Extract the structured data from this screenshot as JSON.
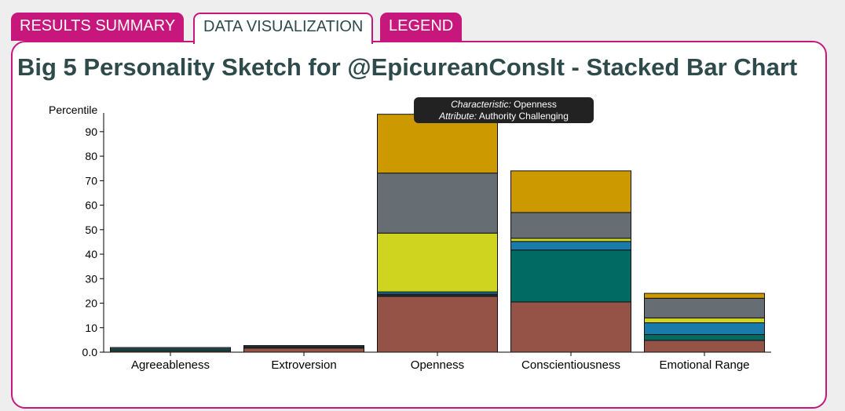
{
  "tabs": [
    {
      "label": "RESULTS SUMMARY",
      "active": false
    },
    {
      "label": "DATA VISUALIZATION",
      "active": true
    },
    {
      "label": "LEGEND",
      "active": false
    }
  ],
  "title": "Big 5 Personality Sketch for @EpicureanConslt - Stacked Bar Chart",
  "tooltip": {
    "characteristic_label": "Characteristic:",
    "characteristic_value": "Openness",
    "attribute_label": "Attribute:",
    "attribute_value": "Authority Challenging"
  },
  "colors": {
    "accent": "#c8177c",
    "title": "#2e4a4a",
    "seg1": "#955246",
    "seg2": "#1f2f2f",
    "seg3": "#1a7bab",
    "seg4": "#cfd51f",
    "seg5": "#666e74",
    "seg6": "#cc9900",
    "seg7": "#006a63"
  },
  "chart_data": {
    "type": "bar",
    "stacked": true,
    "ylabel": "Percentile",
    "ylim": [
      0,
      97
    ],
    "yticks": [
      "0.0",
      "10",
      "20",
      "30",
      "40",
      "50",
      "60",
      "70",
      "80",
      "90"
    ],
    "categories": [
      "Agreeableness",
      "Extroversion",
      "Openness",
      "Conscientiousness",
      "Emotional Range"
    ],
    "stacks": [
      [
        {
          "value": 0.5,
          "color": "#955246"
        },
        {
          "value": 0.8,
          "color": "#006a63"
        },
        {
          "value": 0.6,
          "color": "#666e74"
        }
      ],
      [
        {
          "value": 1.7,
          "color": "#955246"
        },
        {
          "value": 1.0,
          "color": "#1f2f2f"
        }
      ],
      [
        {
          "value": 22.8,
          "color": "#955246"
        },
        {
          "value": 0.9,
          "color": "#1f2f2f"
        },
        {
          "value": 0.9,
          "color": "#1a7bab"
        },
        {
          "value": 24.0,
          "color": "#cfd51f"
        },
        {
          "value": 24.5,
          "color": "#666e74"
        },
        {
          "value": 24.0,
          "color": "#cc9900"
        }
      ],
      [
        {
          "value": 20.5,
          "color": "#955246"
        },
        {
          "value": 21.2,
          "color": "#006a63"
        },
        {
          "value": 3.5,
          "color": "#1a7bab"
        },
        {
          "value": 1.3,
          "color": "#cfd51f"
        },
        {
          "value": 10.5,
          "color": "#666e74"
        },
        {
          "value": 17.0,
          "color": "#cc9900"
        }
      ],
      [
        {
          "value": 4.8,
          "color": "#955246"
        },
        {
          "value": 2.4,
          "color": "#006a63"
        },
        {
          "value": 4.8,
          "color": "#1a7bab"
        },
        {
          "value": 2.0,
          "color": "#cfd51f"
        },
        {
          "value": 8.0,
          "color": "#666e74"
        },
        {
          "value": 2.0,
          "color": "#cc9900"
        }
      ]
    ]
  }
}
